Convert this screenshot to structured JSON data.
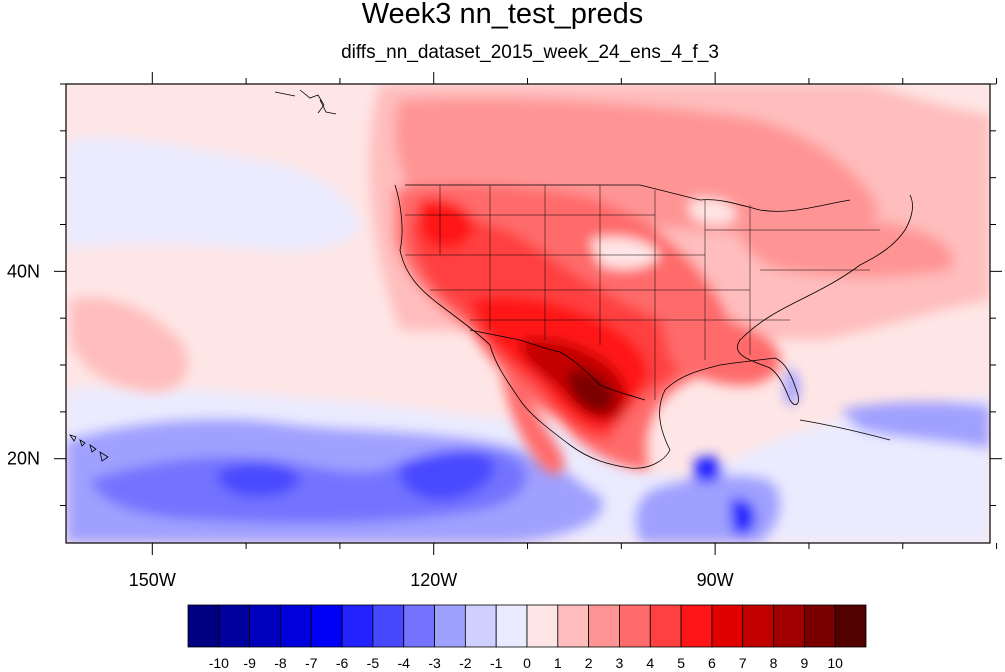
{
  "title": "Week3 nn_test_preds",
  "subtitle": "diffs_nn_dataset_2015_week_24_ens_4_f_3",
  "axes": {
    "x_ticks": [
      {
        "value": -150,
        "label": "150W"
      },
      {
        "value": -120,
        "label": "120W"
      },
      {
        "value": -90,
        "label": "90W"
      }
    ],
    "y_ticks": [
      {
        "value": 40,
        "label": "40N"
      },
      {
        "value": 20,
        "label": "20N"
      }
    ],
    "lon_range": [
      -159.2,
      -60.7
    ],
    "lat_range": [
      11,
      60
    ]
  },
  "colorbar": {
    "levels": [
      -10,
      -9,
      -8,
      -7,
      -6,
      -5,
      -4,
      -3,
      -2,
      -1,
      0,
      1,
      2,
      3,
      4,
      5,
      6,
      7,
      8,
      9,
      10
    ],
    "level_labels": [
      "-10",
      "-9",
      "-8",
      "-7",
      "-6",
      "-5",
      "-4",
      "-3",
      "-2",
      "-1",
      "0",
      "1",
      "2",
      "3",
      "4",
      "5",
      "6",
      "7",
      "8",
      "9",
      "10"
    ],
    "colors": [
      "#000080",
      "#00009e",
      "#0000bd",
      "#0000dc",
      "#0000f8",
      "#2222ff",
      "#4848ff",
      "#7373ff",
      "#a0a0ff",
      "#d0d0ff",
      "#ebebff",
      "#ffe6e6",
      "#ffbdbd",
      "#ff9494",
      "#ff6a6a",
      "#ff4040",
      "#ff1515",
      "#e00000",
      "#c20000",
      "#a00000",
      "#7a0000",
      "#520000"
    ]
  },
  "field": {
    "variable": "diffs",
    "description_levels": "temperature anomaly difference, filled contours",
    "background_value": 1,
    "regions": [
      {
        "lon": -108,
        "lat": 30,
        "value": 8
      },
      {
        "lon": -104,
        "lat": 27,
        "value": 9
      },
      {
        "lon": -118,
        "lat": 42,
        "value": 6
      },
      {
        "lon": -98,
        "lat": 33,
        "value": 5
      },
      {
        "lon": -88,
        "lat": 33,
        "value": 3
      },
      {
        "lon": -78,
        "lat": 40,
        "value": 2
      },
      {
        "lon": -105,
        "lat": 53,
        "value": 3
      },
      {
        "lon": -130,
        "lat": 18,
        "value": -4
      },
      {
        "lon": -145,
        "lat": 16,
        "value": -3
      },
      {
        "lon": -89,
        "lat": 15,
        "value": -6
      },
      {
        "lon": -70,
        "lat": 22,
        "value": -2
      }
    ]
  },
  "colors": {
    "land_outline": "#000000",
    "frame": "#000000"
  }
}
